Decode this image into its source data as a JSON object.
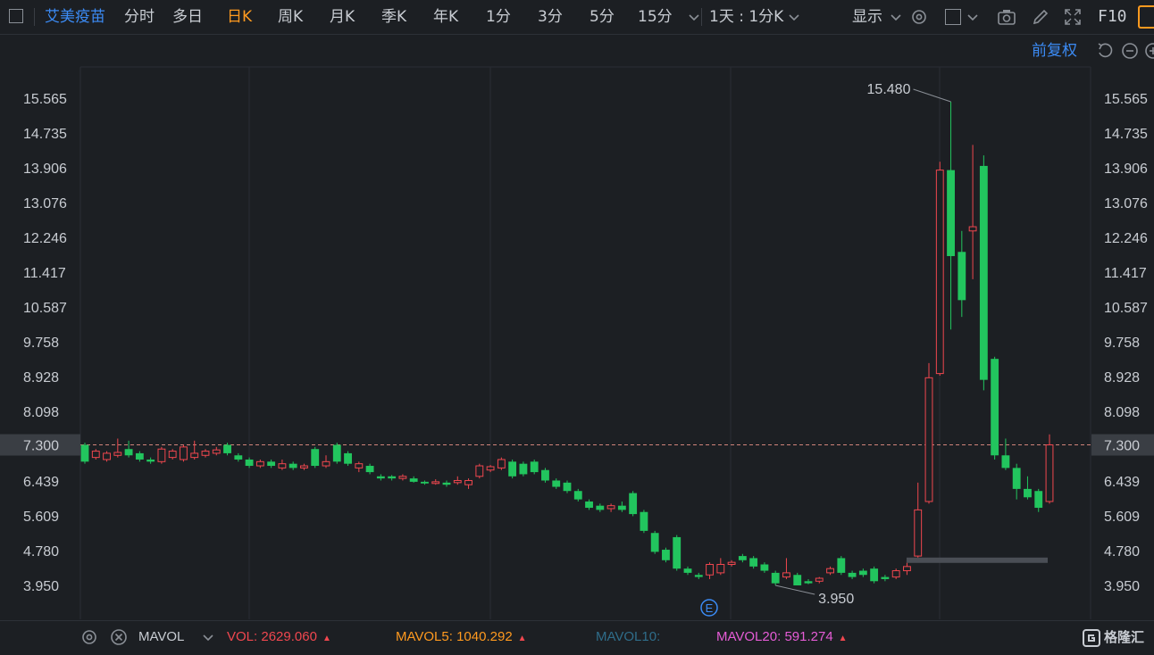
{
  "toolbar": {
    "stock_name": "艾美疫苗",
    "periods": [
      "分时",
      "多日",
      "日K",
      "周K",
      "月K",
      "季K",
      "年K",
      "1分",
      "3分",
      "5分",
      "15分"
    ],
    "active_period": "日K",
    "interval_select": "1天 : 1分K",
    "display_label": "显示",
    "f10_label": "F10"
  },
  "subbar": {
    "adjust_label": "前复权"
  },
  "colors": {
    "up": "#f0474f",
    "down": "#22c55e",
    "active": "#ff9a1f",
    "link": "#3b8bf5",
    "bg": "#1c1f23",
    "grid": "#2a2e34"
  },
  "price_axis": {
    "ticks": [
      "15.565",
      "14.735",
      "13.906",
      "13.076",
      "12.246",
      "11.417",
      "10.587",
      "9.758",
      "8.928",
      "8.098",
      "7.300",
      "6.439",
      "5.609",
      "4.780",
      "3.950"
    ],
    "current_price": "7.300",
    "max_label": "15.480",
    "min_label": "3.950"
  },
  "chart_data": {
    "type": "candlestick",
    "ylim": [
      3.6,
      16.3
    ],
    "reference_price": 7.3,
    "high_annotation": 15.48,
    "low_annotation": 3.95,
    "candles": [
      [
        7.3,
        6.9,
        7.35,
        6.85
      ],
      [
        7.0,
        7.15,
        7.2,
        6.95
      ],
      [
        6.95,
        7.1,
        7.15,
        6.9
      ],
      [
        7.05,
        7.12,
        7.45,
        7.0
      ],
      [
        7.2,
        7.05,
        7.4,
        7.0
      ],
      [
        7.1,
        6.95,
        7.15,
        6.9
      ],
      [
        6.95,
        6.9,
        7.0,
        6.85
      ],
      [
        6.9,
        7.2,
        7.25,
        6.85
      ],
      [
        7.0,
        7.15,
        7.2,
        6.95
      ],
      [
        6.95,
        7.25,
        7.3,
        6.9
      ],
      [
        7.0,
        7.1,
        7.4,
        6.95
      ],
      [
        7.05,
        7.15,
        7.2,
        7.0
      ],
      [
        7.1,
        7.18,
        7.25,
        7.05
      ],
      [
        7.3,
        7.1,
        7.35,
        7.05
      ],
      [
        7.05,
        6.95,
        7.1,
        6.9
      ],
      [
        6.95,
        6.8,
        7.0,
        6.75
      ],
      [
        6.8,
        6.9,
        6.95,
        6.75
      ],
      [
        6.9,
        6.8,
        6.95,
        6.75
      ],
      [
        6.75,
        6.85,
        6.95,
        6.7
      ],
      [
        6.85,
        6.75,
        6.9,
        6.7
      ],
      [
        6.75,
        6.8,
        6.85,
        6.7
      ],
      [
        7.2,
        6.8,
        7.25,
        6.75
      ],
      [
        6.8,
        6.9,
        7.05,
        6.75
      ],
      [
        7.3,
        6.9,
        7.35,
        6.85
      ],
      [
        7.1,
        6.85,
        7.15,
        6.8
      ],
      [
        6.75,
        6.85,
        6.9,
        6.65
      ],
      [
        6.8,
        6.65,
        6.85,
        6.6
      ],
      [
        6.55,
        6.5,
        6.6,
        6.45
      ],
      [
        6.55,
        6.5,
        6.58,
        6.45
      ],
      [
        6.5,
        6.55,
        6.6,
        6.45
      ],
      [
        6.5,
        6.42,
        6.55,
        6.4
      ],
      [
        6.42,
        6.38,
        6.45,
        6.35
      ],
      [
        6.38,
        6.42,
        6.48,
        6.35
      ],
      [
        6.4,
        6.35,
        6.45,
        6.3
      ],
      [
        6.4,
        6.45,
        6.55,
        6.35
      ],
      [
        6.35,
        6.45,
        6.5,
        6.25
      ],
      [
        6.55,
        6.8,
        6.85,
        6.5
      ],
      [
        6.7,
        6.78,
        6.82,
        6.65
      ],
      [
        6.75,
        6.95,
        7.0,
        6.7
      ],
      [
        6.9,
        6.55,
        6.95,
        6.5
      ],
      [
        6.85,
        6.6,
        6.9,
        6.55
      ],
      [
        6.9,
        6.65,
        6.95,
        6.6
      ],
      [
        6.7,
        6.45,
        6.75,
        6.4
      ],
      [
        6.45,
        6.3,
        6.5,
        6.25
      ],
      [
        6.4,
        6.2,
        6.45,
        6.15
      ],
      [
        6.2,
        6.0,
        6.25,
        5.95
      ],
      [
        5.95,
        5.8,
        6.0,
        5.75
      ],
      [
        5.85,
        5.75,
        5.9,
        5.7
      ],
      [
        5.78,
        5.85,
        5.9,
        5.7
      ],
      [
        5.85,
        5.75,
        5.95,
        5.7
      ],
      [
        6.15,
        5.65,
        6.2,
        5.6
      ],
      [
        5.7,
        5.25,
        5.75,
        5.2
      ],
      [
        5.2,
        4.75,
        5.25,
        4.7
      ],
      [
        4.8,
        4.55,
        4.85,
        4.5
      ],
      [
        5.1,
        4.35,
        5.15,
        4.3
      ],
      [
        4.35,
        4.25,
        4.4,
        4.2
      ],
      [
        4.2,
        4.15,
        4.25,
        4.1
      ],
      [
        4.2,
        4.45,
        4.5,
        4.1
      ],
      [
        4.25,
        4.45,
        4.6,
        4.2
      ],
      [
        4.45,
        4.5,
        4.55,
        4.4
      ],
      [
        4.65,
        4.55,
        4.7,
        4.5
      ],
      [
        4.6,
        4.4,
        4.65,
        4.35
      ],
      [
        4.45,
        4.3,
        4.5,
        4.25
      ],
      [
        4.25,
        4.0,
        4.3,
        3.95
      ],
      [
        4.15,
        4.25,
        4.6,
        4.1
      ],
      [
        4.2,
        3.95,
        4.25,
        3.95
      ],
      [
        4.05,
        4.0,
        4.1,
        3.98
      ],
      [
        4.05,
        4.12,
        4.15,
        4.0
      ],
      [
        4.25,
        4.35,
        4.4,
        4.2
      ],
      [
        4.6,
        4.25,
        4.65,
        4.2
      ],
      [
        4.25,
        4.15,
        4.3,
        4.1
      ],
      [
        4.3,
        4.2,
        4.35,
        4.15
      ],
      [
        4.35,
        4.05,
        4.4,
        4.0
      ],
      [
        4.15,
        4.1,
        4.2,
        4.05
      ],
      [
        4.15,
        4.3,
        4.35,
        4.1
      ],
      [
        4.3,
        4.4,
        4.55,
        4.2
      ],
      [
        4.65,
        5.75,
        6.4,
        4.6
      ],
      [
        5.95,
        8.9,
        9.25,
        5.9
      ],
      [
        9.0,
        13.85,
        14.05,
        8.95
      ],
      [
        13.85,
        11.8,
        15.48,
        10.05
      ],
      [
        11.9,
        10.75,
        12.4,
        10.35
      ],
      [
        12.4,
        12.5,
        14.45,
        11.25
      ],
      [
        13.95,
        8.85,
        14.2,
        8.6
      ],
      [
        9.35,
        7.05,
        9.4,
        6.95
      ],
      [
        7.05,
        6.75,
        7.45,
        6.7
      ],
      [
        6.75,
        6.25,
        6.85,
        6.0
      ],
      [
        6.25,
        6.05,
        6.55,
        6.0
      ],
      [
        6.2,
        5.8,
        6.25,
        5.7
      ],
      [
        5.95,
        7.3,
        7.55,
        5.9
      ]
    ],
    "indicator": "MAVOL",
    "vol": "2629.060",
    "mavol5": "1040.292",
    "mavol10": "",
    "mavol20": "591.274"
  },
  "bottombar": {
    "indicator_name": "MAVOL",
    "vol_label": "VOL:",
    "mavol5_label": "MAVOL5:",
    "mavol10_label": "MAVOL10:",
    "mavol20_label": "MAVOL20:",
    "vol_arrow": "▲",
    "mavol5_arrow": "▲",
    "mavol20_arrow": "▲",
    "brand": "格隆汇"
  },
  "event_marker": "E"
}
